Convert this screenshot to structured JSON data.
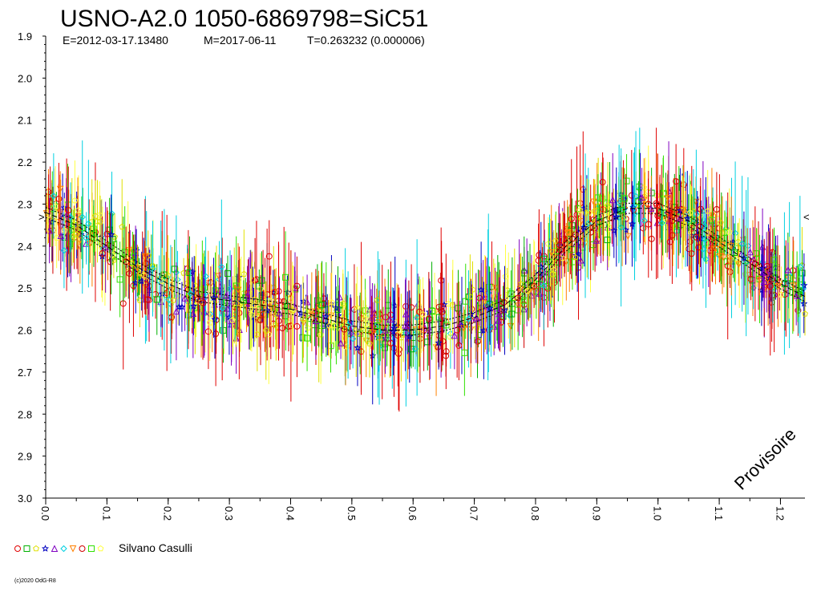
{
  "chart_data": {
    "type": "scatter",
    "title": "USNO-A2.0 1050-6869798=SiC51",
    "subtitle": {
      "epoch": "E=2012-03-17.13480",
      "date": "M=2017-06-11",
      "period": "T=0.263232 (0.000006)"
    },
    "xlabel": "",
    "ylabel": "",
    "xlim": [
      0.0,
      1.24
    ],
    "ylim": [
      3.0,
      1.9
    ],
    "y_inverted": true,
    "x_ticks": [
      "0.0",
      "0.1",
      "0.2",
      "0.3",
      "0.4",
      "0.5",
      "0.6",
      "0.7",
      "0.8",
      "0.9",
      "1.0",
      "1.1",
      "1.2"
    ],
    "y_ticks": [
      "1.9",
      "2.0",
      "2.1",
      "2.2",
      "2.3",
      "2.4",
      "2.5",
      "2.6",
      "2.7",
      "2.8",
      "2.9",
      "3.0"
    ],
    "grid": false,
    "legend": {
      "placement": "bottom-left",
      "observer": "Silvano Casulli",
      "series_colors": [
        "#e00000",
        "#00b000",
        "#e0e000",
        "#0000c0",
        "#8000c0",
        "#00d0e0",
        "#ff8000",
        "#d00000",
        "#30e000",
        "#ffff40"
      ]
    },
    "light_curve_model": {
      "phase": [
        0.0,
        0.05,
        0.1,
        0.15,
        0.2,
        0.25,
        0.3,
        0.35,
        0.4,
        0.45,
        0.5,
        0.55,
        0.6,
        0.65,
        0.7,
        0.75,
        0.8,
        0.85,
        0.9,
        0.95,
        1.0,
        1.05,
        1.1,
        1.15,
        1.2,
        1.24
      ],
      "magnitude": [
        2.32,
        2.35,
        2.4,
        2.45,
        2.49,
        2.52,
        2.53,
        2.54,
        2.55,
        2.57,
        2.59,
        2.6,
        2.6,
        2.59,
        2.57,
        2.54,
        2.48,
        2.4,
        2.34,
        2.31,
        2.31,
        2.34,
        2.39,
        2.44,
        2.49,
        2.52
      ]
    },
    "point_scatter_mag": 0.06,
    "error_bar_mag": 0.07
  },
  "labels": {
    "watermark": "Provisoire",
    "credit": "(c)2020 OdG-R8",
    "left_marker": ">",
    "right_marker": "<"
  }
}
